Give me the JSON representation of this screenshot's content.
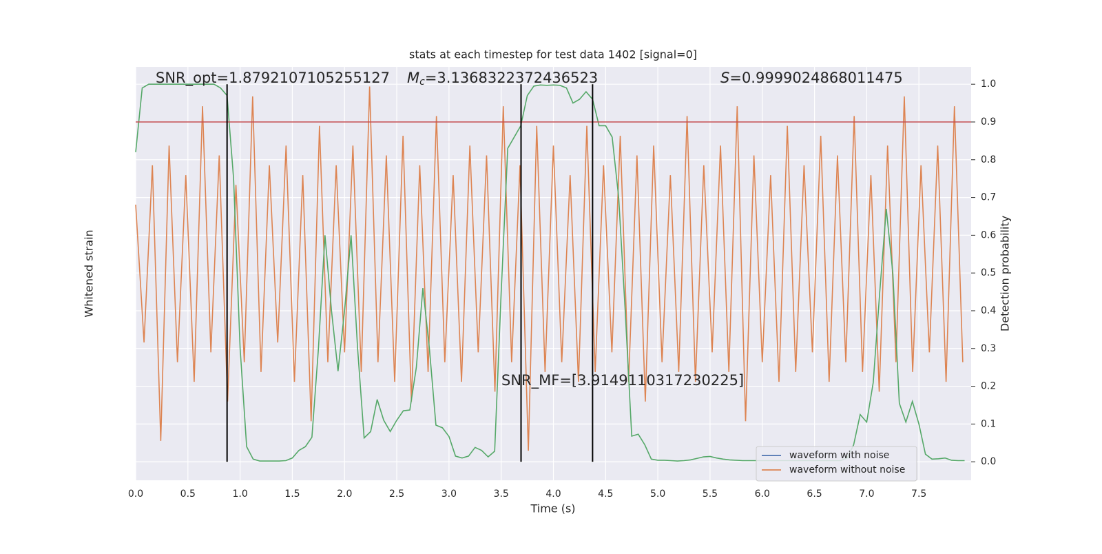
{
  "chart_data": {
    "type": "line",
    "title": "stats at each timestep for test data 1402 [signal=0]",
    "xlabel": "Time (s)",
    "ylabel": "Whitened strain",
    "y2label": "Detection probability",
    "xlim": [
      0,
      8.0
    ],
    "xticks": [
      {
        "value": 0,
        "label": "0.0"
      },
      0.5,
      {
        "value": 1,
        "label": "1.0"
      },
      1.5,
      {
        "value": 2,
        "label": "2.0"
      },
      2.5,
      {
        "value": 3,
        "label": "3.0"
      },
      3.5,
      {
        "value": 4,
        "label": "4.0"
      },
      4.5,
      {
        "value": 5,
        "label": "5.0"
      },
      5.5,
      {
        "value": 6,
        "label": "6.0"
      },
      6.5,
      {
        "value": 7,
        "label": "7.0"
      },
      7.5
    ],
    "ylim": [
      -1.1,
      1.0
    ],
    "y2lim": [
      -0.049,
      1.046
    ],
    "y2ticks": [
      {
        "value": 0,
        "label": "0.0"
      },
      0.1,
      0.2,
      0.3,
      0.4,
      0.5,
      0.6,
      0.7,
      0.8,
      0.9,
      {
        "value": 1,
        "label": "1.0"
      }
    ],
    "grid": true,
    "legend": "lower right",
    "hline": {
      "value": 0.9,
      "color": "#c44e52",
      "axis": "y2"
    },
    "vlines": {
      "values": [
        0.875,
        3.69,
        4.375
      ],
      "color": "#000000"
    },
    "annotations": [
      {
        "text": "SNR_opt=1.8792107105255127"
      },
      {
        "symbol": "M",
        "subscript": "c",
        "text": "=3.1368322372436523"
      },
      {
        "symbol": "S",
        "text": "=0.9999024868011475"
      },
      {
        "text": "SNR_MF=[3.9149110317230225]"
      }
    ],
    "series": [
      {
        "name": "waveform with noise",
        "color": "#4c72b0"
      },
      {
        "name": "waveform without noise",
        "color": "#dd8452",
        "x": [
          0,
          0.08,
          0.16,
          0.24,
          0.32,
          0.4,
          0.48,
          0.56,
          0.64,
          0.72,
          0.8,
          0.88,
          0.96,
          1.04,
          1.12,
          1.2,
          1.28,
          1.36,
          1.44,
          1.52,
          1.6,
          1.68,
          1.76,
          1.84,
          1.92,
          2.0,
          2.08,
          2.16,
          2.24,
          2.32,
          2.4,
          2.48,
          2.56,
          2.64,
          2.72,
          2.8,
          2.88,
          2.96,
          3.04,
          3.12,
          3.2,
          3.28,
          3.36,
          3.44,
          3.52,
          3.6,
          3.68,
          3.76,
          3.84,
          3.92,
          4.0,
          4.08,
          4.16,
          4.24,
          4.32,
          4.4,
          4.48,
          4.56,
          4.64,
          4.72,
          4.8,
          4.88,
          4.96,
          5.04,
          5.12,
          5.2,
          5.28,
          5.36,
          5.44,
          5.52,
          5.6,
          5.68,
          5.76,
          5.84,
          5.92,
          6.0,
          6.08,
          6.16,
          6.24,
          6.32,
          6.4,
          6.48,
          6.56,
          6.64,
          6.72,
          6.8,
          6.88,
          6.96,
          7.04,
          7.12,
          7.2,
          7.28,
          7.36,
          7.44,
          7.52,
          7.6,
          7.68,
          7.76,
          7.84,
          7.92
        ],
        "values": [
          0.3,
          -0.4,
          0.5,
          -0.9,
          0.6,
          -0.5,
          0.45,
          -0.6,
          0.8,
          -0.45,
          0.55,
          -0.7,
          0.4,
          -0.5,
          0.85,
          -0.55,
          0.5,
          -0.4,
          0.6,
          -0.6,
          0.45,
          -0.8,
          0.7,
          -0.5,
          0.5,
          -0.45,
          0.6,
          -0.55,
          0.9,
          -0.5,
          0.55,
          -0.6,
          0.65,
          -0.7,
          0.5,
          -0.55,
          0.75,
          -0.5,
          0.45,
          -0.6,
          0.6,
          -0.45,
          0.55,
          -0.65,
          0.8,
          -0.5,
          0.5,
          -0.95,
          0.7,
          -0.55,
          0.6,
          -0.5,
          0.45,
          -0.6,
          0.7,
          -0.55,
          0.5,
          -0.45,
          0.65,
          -0.6,
          0.55,
          -0.7,
          0.6,
          -0.5,
          0.45,
          -0.55,
          0.75,
          -0.6,
          0.5,
          -0.45,
          0.6,
          -0.55,
          0.8,
          -0.8,
          0.55,
          -0.5,
          0.45,
          -0.6,
          0.7,
          -0.55,
          0.5,
          -0.45,
          0.65,
          -0.6,
          0.55,
          -0.5,
          0.75,
          -0.55,
          0.45,
          -0.65,
          0.6,
          -0.5,
          0.85,
          -0.55,
          0.5,
          -0.45,
          0.6,
          -0.6,
          0.8,
          -0.5
        ]
      },
      {
        "color": "#55a868",
        "axis": "y2",
        "x": [
          0,
          0.0625,
          0.125,
          0.1875,
          0.25,
          0.3125,
          0.375,
          0.4375,
          0.5,
          0.5625,
          0.625,
          0.6875,
          0.75,
          0.8125,
          0.875,
          0.9375,
          1.0,
          1.0625,
          1.125,
          1.1875,
          1.25,
          1.3125,
          1.375,
          1.4375,
          1.5,
          1.5625,
          1.625,
          1.6875,
          1.75,
          1.8125,
          1.875,
          1.9375,
          2.0,
          2.0625,
          2.125,
          2.1875,
          2.25,
          2.3125,
          2.375,
          2.4375,
          2.5,
          2.5625,
          2.625,
          2.6875,
          2.75,
          2.8125,
          2.875,
          2.9375,
          3.0,
          3.0625,
          3.125,
          3.1875,
          3.25,
          3.3125,
          3.375,
          3.4375,
          3.5,
          3.5625,
          3.625,
          3.6875,
          3.75,
          3.8125,
          3.875,
          3.9375,
          4.0,
          4.0625,
          4.125,
          4.1875,
          4.25,
          4.3125,
          4.375,
          4.4375,
          4.5,
          4.5625,
          4.625,
          4.6875,
          4.75,
          4.8125,
          4.875,
          4.9375,
          5.0,
          5.0625,
          5.125,
          5.1875,
          5.25,
          5.3125,
          5.375,
          5.4375,
          5.5,
          5.5625,
          5.625,
          5.6875,
          5.75,
          5.8125,
          5.875,
          5.9375,
          6.0,
          6.0625,
          6.125,
          6.1875,
          6.25,
          6.3125,
          6.375,
          6.4375,
          6.5,
          6.5625,
          6.625,
          6.6875,
          6.75,
          6.8125,
          6.875,
          6.9375,
          7.0,
          7.0625,
          7.125,
          7.1875,
          7.25,
          7.3125,
          7.375,
          7.4375,
          7.5,
          7.5625,
          7.625,
          7.6875,
          7.75,
          7.8125,
          7.875,
          7.9375
        ],
        "values": [
          0.82,
          0.99,
          1.0,
          1.0,
          1.0,
          1.0,
          1.0,
          1.0,
          1.0,
          1.0,
          1.0,
          1.0,
          1.0,
          0.99,
          0.97,
          0.75,
          0.3,
          0.04,
          0.007,
          0.002,
          0.002,
          0.002,
          0.002,
          0.003,
          0.01,
          0.03,
          0.04,
          0.065,
          0.3,
          0.6,
          0.4,
          0.24,
          0.4,
          0.6,
          0.3,
          0.063,
          0.08,
          0.165,
          0.11,
          0.08,
          0.11,
          0.135,
          0.137,
          0.25,
          0.46,
          0.3,
          0.097,
          0.09,
          0.067,
          0.015,
          0.01,
          0.015,
          0.038,
          0.03,
          0.013,
          0.028,
          0.45,
          0.83,
          0.86,
          0.89,
          0.97,
          0.995,
          0.998,
          0.997,
          0.998,
          0.997,
          0.99,
          0.95,
          0.96,
          0.98,
          0.96,
          0.89,
          0.89,
          0.86,
          0.7,
          0.4,
          0.068,
          0.073,
          0.045,
          0.007,
          0.004,
          0.004,
          0.003,
          0.002,
          0.003,
          0.005,
          0.009,
          0.013,
          0.014,
          0.01,
          0.007,
          0.005,
          0.004,
          0.003,
          0.003,
          0.003,
          0.003,
          0.003,
          0.003,
          0.003,
          0.003,
          0.003,
          0.003,
          0.003,
          0.003,
          0.003,
          0.003,
          0.003,
          0.003,
          0.01,
          0.045,
          0.125,
          0.105,
          0.21,
          0.45,
          0.67,
          0.5,
          0.155,
          0.105,
          0.16,
          0.1,
          0.02,
          0.007,
          0.008,
          0.01,
          0.004,
          0.003,
          0.003
        ]
      }
    ]
  }
}
